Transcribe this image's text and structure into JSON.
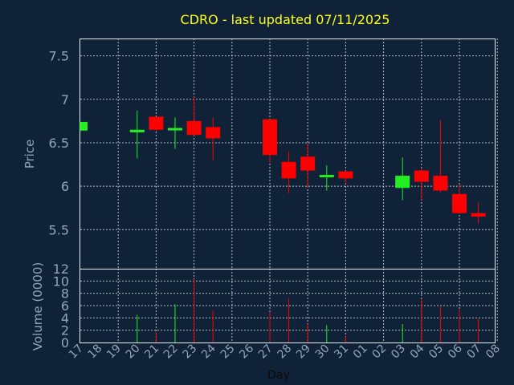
{
  "chart_data": {
    "type": "candlestick",
    "title": "CDRO - last updated 07/11/2025",
    "xlabel": "Day",
    "price_panel": {
      "ylabel": "Price",
      "ylim": [
        5.05,
        7.7
      ],
      "yticks": [
        5.5,
        6,
        6.5,
        7,
        7.5
      ],
      "ytick_labels": [
        "5.5",
        "6",
        "6.5",
        "7",
        "7.5"
      ]
    },
    "volume_panel": {
      "ylabel": "Volume (0000)",
      "ylim": [
        0,
        12
      ],
      "yticks": [
        0,
        2,
        4,
        6,
        8,
        10,
        12
      ],
      "ytick_labels": [
        "0",
        "2",
        "4",
        "6",
        "8",
        "10",
        "12"
      ]
    },
    "x_labels": [
      "17",
      "18",
      "19",
      "20",
      "21",
      "22",
      "23",
      "24",
      "25",
      "26",
      "27",
      "28",
      "29",
      "30",
      "31",
      "01",
      "02",
      "03",
      "04",
      "05",
      "06",
      "07",
      "08"
    ],
    "candles": [
      {
        "day": "17",
        "open": 6.64,
        "high": 6.74,
        "low": 6.63,
        "close": 6.74,
        "volume": 0.0
      },
      {
        "day": "20",
        "open": 6.62,
        "high": 6.87,
        "low": 6.32,
        "close": 6.65,
        "volume": 4.5
      },
      {
        "day": "21",
        "open": 6.8,
        "high": 6.8,
        "low": 6.63,
        "close": 6.65,
        "volume": 1.6
      },
      {
        "day": "22",
        "open": 6.66,
        "high": 6.79,
        "low": 6.43,
        "close": 6.67,
        "volume": 6.2
      },
      {
        "day": "23",
        "open": 6.75,
        "high": 7.03,
        "low": 6.58,
        "close": 6.59,
        "volume": 10.3
      },
      {
        "day": "24",
        "open": 6.68,
        "high": 6.79,
        "low": 6.3,
        "close": 6.55,
        "volume": 5.2
      },
      {
        "day": "27",
        "open": 6.77,
        "high": 6.77,
        "low": 6.27,
        "close": 6.36,
        "volume": 5.0
      },
      {
        "day": "28",
        "open": 6.28,
        "high": 6.4,
        "low": 5.92,
        "close": 6.09,
        "volume": 7.2
      },
      {
        "day": "29",
        "open": 6.34,
        "high": 6.49,
        "low": 5.98,
        "close": 6.18,
        "volume": 3.0
      },
      {
        "day": "30",
        "open": 6.11,
        "high": 6.24,
        "low": 5.95,
        "close": 6.13,
        "volume": 2.8
      },
      {
        "day": "31",
        "open": 6.17,
        "high": 6.18,
        "low": 6.03,
        "close": 6.09,
        "volume": 1.0
      },
      {
        "day": "03",
        "open": 5.98,
        "high": 6.33,
        "low": 5.84,
        "close": 6.12,
        "volume": 3.0
      },
      {
        "day": "04",
        "open": 6.18,
        "high": 6.2,
        "low": 5.84,
        "close": 6.05,
        "volume": 7.0
      },
      {
        "day": "05",
        "open": 6.12,
        "high": 6.76,
        "low": 5.93,
        "close": 5.95,
        "volume": 5.8
      },
      {
        "day": "06",
        "open": 5.91,
        "high": 6.02,
        "low": 5.68,
        "close": 5.69,
        "volume": 5.4
      },
      {
        "day": "07",
        "open": 5.69,
        "high": 5.81,
        "low": 5.57,
        "close": 5.65,
        "volume": 3.8
      }
    ],
    "colors": {
      "up": "#22ee22",
      "down": "#ff0000",
      "background": "#0f2237",
      "grid": "#d0d8e0",
      "text": "#8fa7c0",
      "title": "#ffff1a"
    },
    "grid": true
  }
}
